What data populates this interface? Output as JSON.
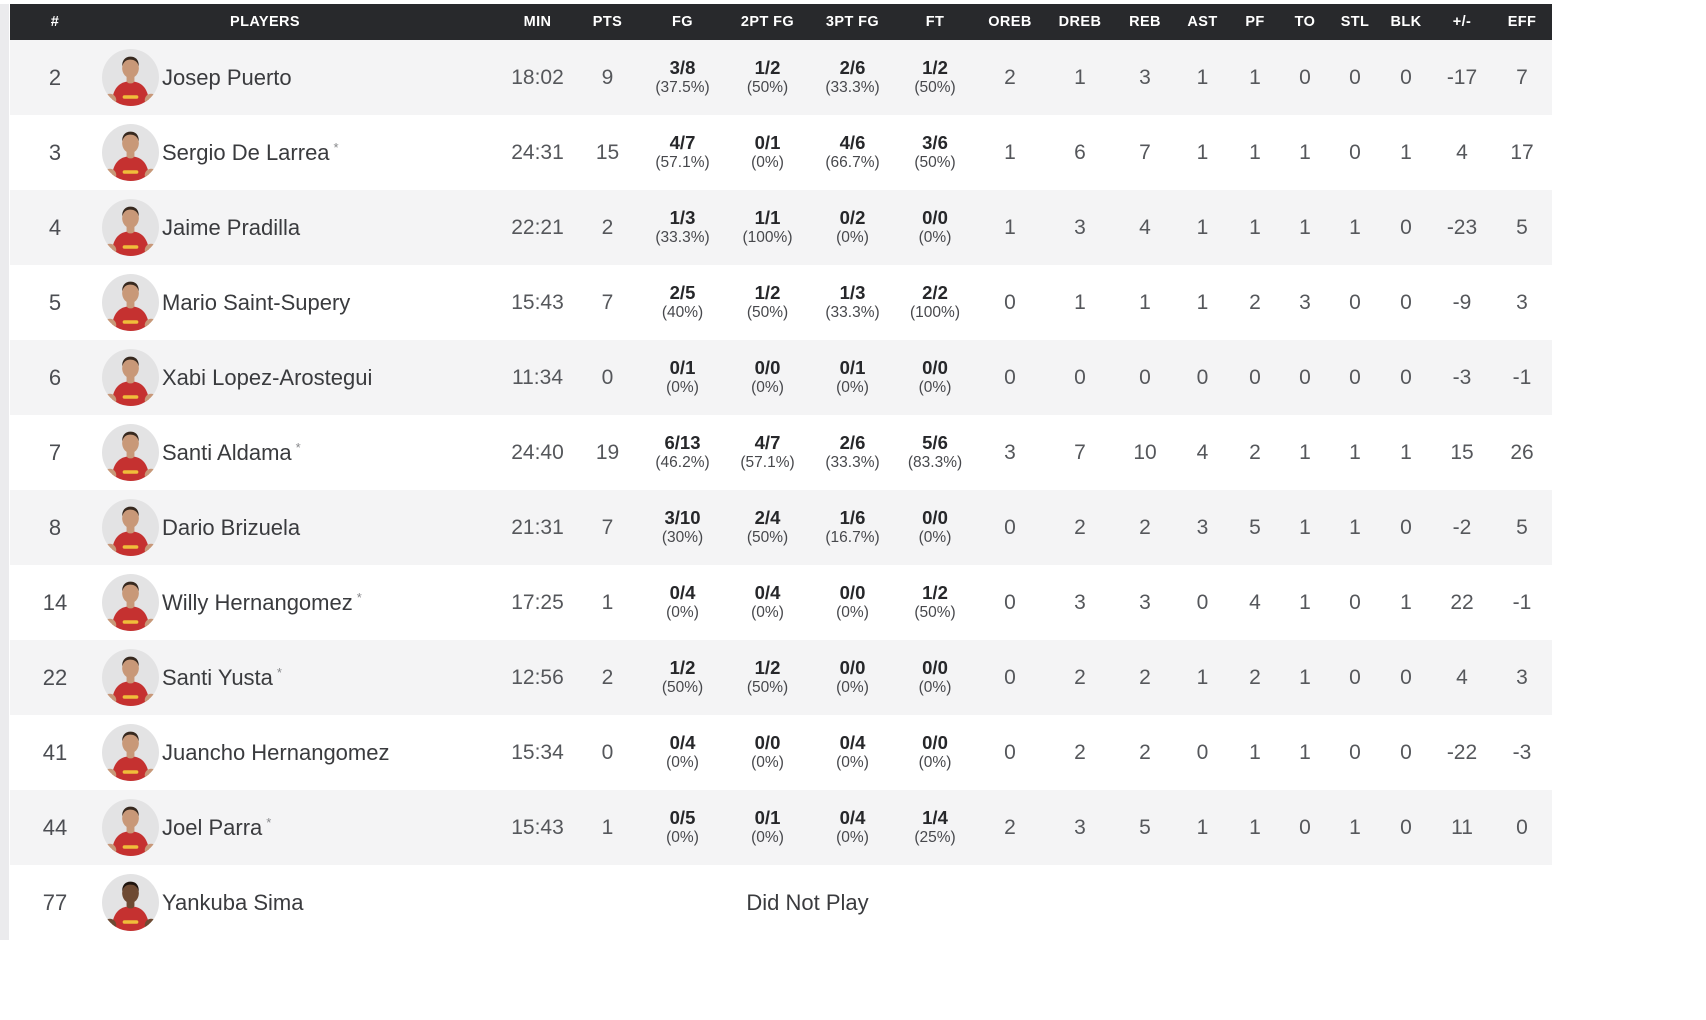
{
  "table": {
    "columns": [
      {
        "key": "num",
        "label": "#"
      },
      {
        "key": "players",
        "label": "PLAYERS"
      },
      {
        "key": "min",
        "label": "MIN"
      },
      {
        "key": "pts",
        "label": "PTS"
      },
      {
        "key": "fg",
        "label": "FG"
      },
      {
        "key": "fg2",
        "label": "2PT FG"
      },
      {
        "key": "fg3",
        "label": "3PT FG"
      },
      {
        "key": "ft",
        "label": "FT"
      },
      {
        "key": "oreb",
        "label": "OREB"
      },
      {
        "key": "dreb",
        "label": "DREB"
      },
      {
        "key": "reb",
        "label": "REB"
      },
      {
        "key": "ast",
        "label": "AST"
      },
      {
        "key": "pf",
        "label": "PF"
      },
      {
        "key": "to",
        "label": "TO"
      },
      {
        "key": "stl",
        "label": "STL"
      },
      {
        "key": "blk",
        "label": "BLK"
      },
      {
        "key": "pm",
        "label": "+/-"
      },
      {
        "key": "eff",
        "label": "EFF"
      }
    ],
    "starter_marker": "*",
    "dnp_label": "Did Not Play",
    "players": [
      {
        "num": "2",
        "name": "Josep Puerto",
        "starter": false,
        "tone": "light",
        "min": "18:02",
        "pts": "9",
        "fg": "3/8",
        "fg_pct": "(37.5%)",
        "fg2": "1/2",
        "fg2_pct": "(50%)",
        "fg3": "2/6",
        "fg3_pct": "(33.3%)",
        "ft": "1/2",
        "ft_pct": "(50%)",
        "oreb": "2",
        "dreb": "1",
        "reb": "3",
        "ast": "1",
        "pf": "1",
        "to": "0",
        "stl": "0",
        "blk": "0",
        "pm": "-17",
        "eff": "7"
      },
      {
        "num": "3",
        "name": "Sergio De Larrea",
        "starter": true,
        "tone": "light",
        "min": "24:31",
        "pts": "15",
        "fg": "4/7",
        "fg_pct": "(57.1%)",
        "fg2": "0/1",
        "fg2_pct": "(0%)",
        "fg3": "4/6",
        "fg3_pct": "(66.7%)",
        "ft": "3/6",
        "ft_pct": "(50%)",
        "oreb": "1",
        "dreb": "6",
        "reb": "7",
        "ast": "1",
        "pf": "1",
        "to": "1",
        "stl": "0",
        "blk": "1",
        "pm": "4",
        "eff": "17"
      },
      {
        "num": "4",
        "name": "Jaime Pradilla",
        "starter": false,
        "tone": "light",
        "min": "22:21",
        "pts": "2",
        "fg": "1/3",
        "fg_pct": "(33.3%)",
        "fg2": "1/1",
        "fg2_pct": "(100%)",
        "fg3": "0/2",
        "fg3_pct": "(0%)",
        "ft": "0/0",
        "ft_pct": "(0%)",
        "oreb": "1",
        "dreb": "3",
        "reb": "4",
        "ast": "1",
        "pf": "1",
        "to": "1",
        "stl": "1",
        "blk": "0",
        "pm": "-23",
        "eff": "5"
      },
      {
        "num": "5",
        "name": "Mario Saint-Supery",
        "starter": false,
        "tone": "light",
        "min": "15:43",
        "pts": "7",
        "fg": "2/5",
        "fg_pct": "(40%)",
        "fg2": "1/2",
        "fg2_pct": "(50%)",
        "fg3": "1/3",
        "fg3_pct": "(33.3%)",
        "ft": "2/2",
        "ft_pct": "(100%)",
        "oreb": "0",
        "dreb": "1",
        "reb": "1",
        "ast": "1",
        "pf": "2",
        "to": "3",
        "stl": "0",
        "blk": "0",
        "pm": "-9",
        "eff": "3"
      },
      {
        "num": "6",
        "name": "Xabi Lopez-Arostegui",
        "starter": false,
        "tone": "light",
        "min": "11:34",
        "pts": "0",
        "fg": "0/1",
        "fg_pct": "(0%)",
        "fg2": "0/0",
        "fg2_pct": "(0%)",
        "fg3": "0/1",
        "fg3_pct": "(0%)",
        "ft": "0/0",
        "ft_pct": "(0%)",
        "oreb": "0",
        "dreb": "0",
        "reb": "0",
        "ast": "0",
        "pf": "0",
        "to": "0",
        "stl": "0",
        "blk": "0",
        "pm": "-3",
        "eff": "-1"
      },
      {
        "num": "7",
        "name": "Santi Aldama",
        "starter": true,
        "tone": "light",
        "min": "24:40",
        "pts": "19",
        "fg": "6/13",
        "fg_pct": "(46.2%)",
        "fg2": "4/7",
        "fg2_pct": "(57.1%)",
        "fg3": "2/6",
        "fg3_pct": "(33.3%)",
        "ft": "5/6",
        "ft_pct": "(83.3%)",
        "oreb": "3",
        "dreb": "7",
        "reb": "10",
        "ast": "4",
        "pf": "2",
        "to": "1",
        "stl": "1",
        "blk": "1",
        "pm": "15",
        "eff": "26"
      },
      {
        "num": "8",
        "name": "Dario Brizuela",
        "starter": false,
        "tone": "light",
        "min": "21:31",
        "pts": "7",
        "fg": "3/10",
        "fg_pct": "(30%)",
        "fg2": "2/4",
        "fg2_pct": "(50%)",
        "fg3": "1/6",
        "fg3_pct": "(16.7%)",
        "ft": "0/0",
        "ft_pct": "(0%)",
        "oreb": "0",
        "dreb": "2",
        "reb": "2",
        "ast": "3",
        "pf": "5",
        "to": "1",
        "stl": "1",
        "blk": "0",
        "pm": "-2",
        "eff": "5"
      },
      {
        "num": "14",
        "name": "Willy Hernangomez",
        "starter": true,
        "tone": "light",
        "min": "17:25",
        "pts": "1",
        "fg": "0/4",
        "fg_pct": "(0%)",
        "fg2": "0/4",
        "fg2_pct": "(0%)",
        "fg3": "0/0",
        "fg3_pct": "(0%)",
        "ft": "1/2",
        "ft_pct": "(50%)",
        "oreb": "0",
        "dreb": "3",
        "reb": "3",
        "ast": "0",
        "pf": "4",
        "to": "1",
        "stl": "0",
        "blk": "1",
        "pm": "22",
        "eff": "-1"
      },
      {
        "num": "22",
        "name": "Santi Yusta",
        "starter": true,
        "tone": "light",
        "min": "12:56",
        "pts": "2",
        "fg": "1/2",
        "fg_pct": "(50%)",
        "fg2": "1/2",
        "fg2_pct": "(50%)",
        "fg3": "0/0",
        "fg3_pct": "(0%)",
        "ft": "0/0",
        "ft_pct": "(0%)",
        "oreb": "0",
        "dreb": "2",
        "reb": "2",
        "ast": "1",
        "pf": "2",
        "to": "1",
        "stl": "0",
        "blk": "0",
        "pm": "4",
        "eff": "3"
      },
      {
        "num": "41",
        "name": "Juancho Hernangomez",
        "starter": false,
        "tone": "light",
        "min": "15:34",
        "pts": "0",
        "fg": "0/4",
        "fg_pct": "(0%)",
        "fg2": "0/0",
        "fg2_pct": "(0%)",
        "fg3": "0/4",
        "fg3_pct": "(0%)",
        "ft": "0/0",
        "ft_pct": "(0%)",
        "oreb": "0",
        "dreb": "2",
        "reb": "2",
        "ast": "0",
        "pf": "1",
        "to": "1",
        "stl": "0",
        "blk": "0",
        "pm": "-22",
        "eff": "-3"
      },
      {
        "num": "44",
        "name": "Joel Parra",
        "starter": true,
        "tone": "light",
        "min": "15:43",
        "pts": "1",
        "fg": "0/5",
        "fg_pct": "(0%)",
        "fg2": "0/1",
        "fg2_pct": "(0%)",
        "fg3": "0/4",
        "fg3_pct": "(0%)",
        "ft": "1/4",
        "ft_pct": "(25%)",
        "oreb": "2",
        "dreb": "3",
        "reb": "5",
        "ast": "1",
        "pf": "1",
        "to": "0",
        "stl": "1",
        "blk": "0",
        "pm": "11",
        "eff": "0"
      },
      {
        "num": "77",
        "name": "Yankuba Sima",
        "starter": false,
        "tone": "dark",
        "dnp": "Did Not Play"
      }
    ],
    "colors": {
      "header_bg": "#28292c",
      "header_text": "#ffffff",
      "row_alt": "#f4f4f5",
      "row_white": "#ffffff",
      "stat_text": "#55575b",
      "name_text": "#3a3b3e",
      "frac_text": "#26272a",
      "pct_text": "#47484c",
      "jersey": "#c53130",
      "jersey_trim": "#f0bd3a",
      "avatar_bg": "#e3e3e4",
      "skin_light": "#c89878",
      "skin_dark": "#6e4a33",
      "hair_light": "#37291f",
      "hair_dark": "#1f140e"
    }
  }
}
